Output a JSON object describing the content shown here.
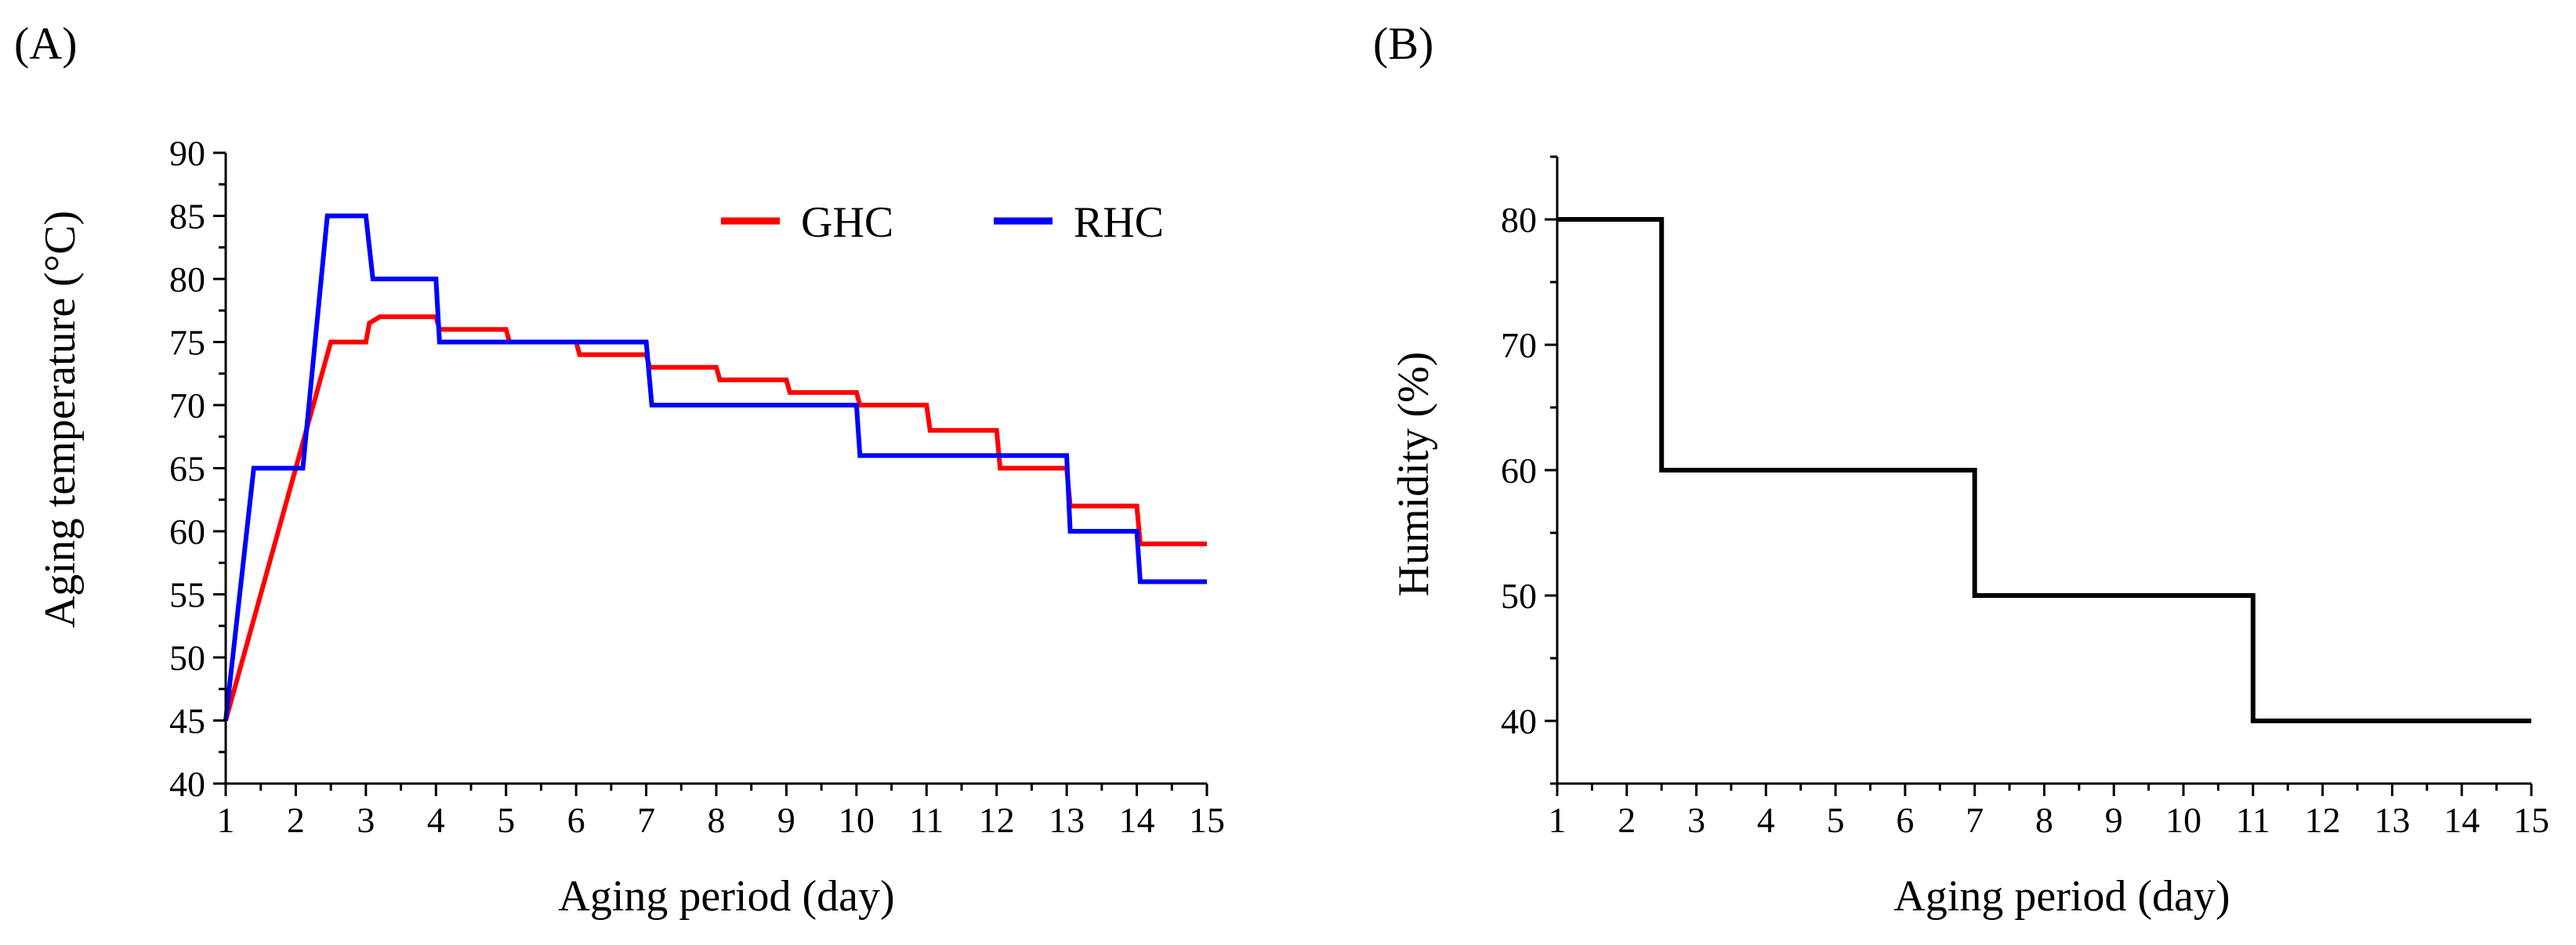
{
  "chart_data": [
    {
      "panel_label": "(A)",
      "type": "line",
      "step": true,
      "title": "",
      "xlabel": "Aging period (day)",
      "ylabel": "Aging temperature (°C)",
      "xlim": [
        1,
        15
      ],
      "ylim": [
        40,
        90
      ],
      "x_ticks": [
        1,
        2,
        3,
        4,
        5,
        6,
        7,
        8,
        9,
        10,
        11,
        12,
        13,
        14,
        15
      ],
      "x_tick_labels": [
        "1",
        "2",
        "3",
        "4",
        "5",
        "6",
        "7",
        "8",
        "9",
        "10",
        "11",
        "12",
        "13",
        "14",
        "15"
      ],
      "y_ticks": [
        40,
        45,
        50,
        55,
        60,
        65,
        70,
        75,
        80,
        85,
        90
      ],
      "y_tick_labels": [
        "40",
        "45",
        "50",
        "55",
        "60",
        "65",
        "70",
        "75",
        "80",
        "85",
        "90"
      ],
      "grid": false,
      "legend_position": "top-right",
      "series": [
        {
          "name": "GHC",
          "color": "#ff0000",
          "x": [
            1,
            2.5,
            3,
            3.05,
            3.2,
            4,
            4.05,
            5,
            5.05,
            6,
            6.05,
            7,
            7.05,
            8,
            8.05,
            9,
            9.05,
            10,
            10.05,
            11,
            11.05,
            12,
            12.05,
            13,
            13.05,
            14,
            14.05,
            15
          ],
          "y": [
            45,
            75,
            75,
            76.5,
            77,
            77,
            76,
            76,
            75,
            75,
            74,
            74,
            73,
            73,
            72,
            72,
            71,
            71,
            70,
            70,
            68,
            68,
            65,
            65,
            62,
            62,
            59,
            59
          ]
        },
        {
          "name": "RHC",
          "color": "#0000ff",
          "x": [
            1,
            1.4,
            2,
            2.1,
            2.45,
            3,
            3.1,
            4,
            4.05,
            7,
            7.08,
            10,
            10.05,
            13,
            13.05,
            14,
            14.05,
            15
          ],
          "y": [
            45,
            65,
            65,
            65,
            85,
            85,
            80,
            80,
            75,
            75,
            70,
            70,
            66,
            66,
            60,
            60,
            56,
            56
          ]
        }
      ]
    },
    {
      "panel_label": "(B)",
      "type": "line",
      "step": true,
      "title": "",
      "xlabel": "Aging period (day)",
      "ylabel": "Humidity (%)",
      "xlim": [
        1,
        15
      ],
      "ylim": [
        35,
        85
      ],
      "x_ticks": [
        1,
        2,
        3,
        4,
        5,
        6,
        7,
        8,
        9,
        10,
        11,
        12,
        13,
        14,
        15
      ],
      "x_tick_labels": [
        "1",
        "2",
        "3",
        "4",
        "5",
        "6",
        "7",
        "8",
        "9",
        "10",
        "11",
        "12",
        "13",
        "14",
        "15"
      ],
      "y_ticks": [
        40,
        50,
        60,
        70,
        80
      ],
      "y_tick_labels": [
        "40",
        "50",
        "60",
        "70",
        "80"
      ],
      "grid": false,
      "series": [
        {
          "name": "Humidity",
          "color": "#000000",
          "x": [
            1,
            2.5,
            2.5,
            7,
            7,
            11,
            11,
            15
          ],
          "y": [
            80,
            80,
            60,
            60,
            50,
            50,
            40,
            40
          ]
        }
      ]
    }
  ]
}
